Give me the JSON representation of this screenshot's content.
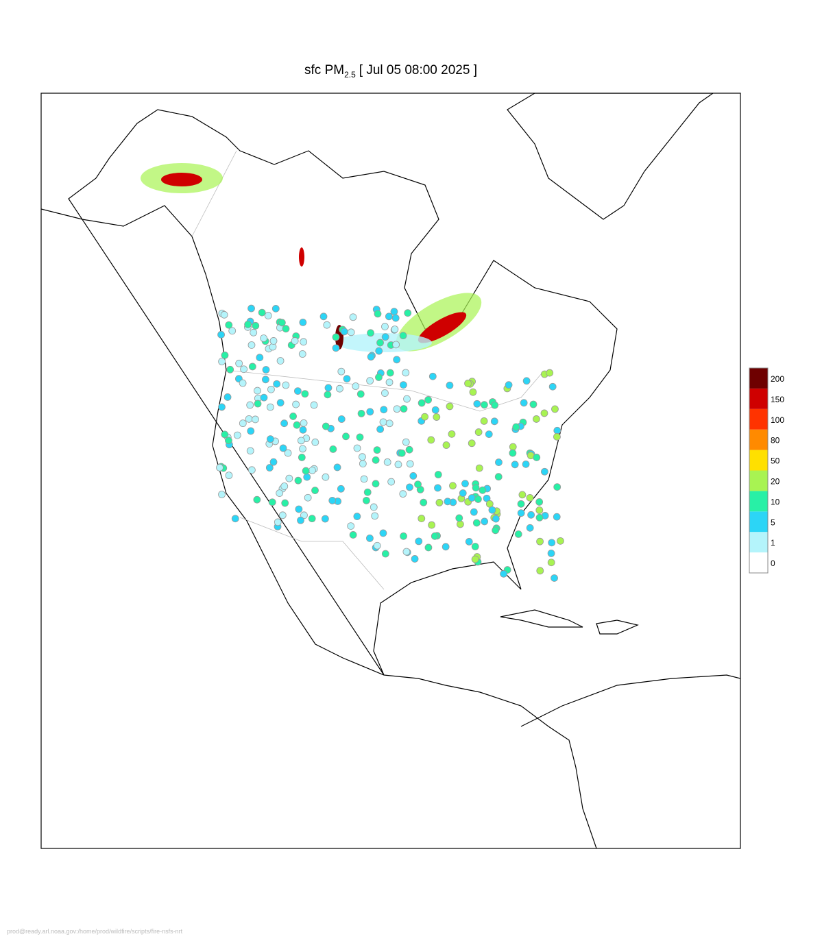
{
  "header": {
    "title_prefix": "sfc PM",
    "title_subscript": "2.5",
    "title_suffix": "[ Jul 05 08:00 2025 ]"
  },
  "legend": {
    "levels": [
      {
        "label": "0",
        "color": "#ffffff"
      },
      {
        "label": "1",
        "color": "#b4f4fb"
      },
      {
        "label": "5",
        "color": "#2cd5f6"
      },
      {
        "label": "10",
        "color": "#28f0a6"
      },
      {
        "label": "20",
        "color": "#a8f352"
      },
      {
        "label": "50",
        "color": "#ffe000"
      },
      {
        "label": "80",
        "color": "#ff8a00"
      },
      {
        "label": "100",
        "color": "#ff3300"
      },
      {
        "label": "150",
        "color": "#cf0000"
      },
      {
        "label": "200",
        "color": "#6e0000"
      }
    ]
  },
  "footer": {
    "text": "prod@ready.arl.noaa.gov:/home/prod/wildfire/scripts/fire-nsfs-nrt"
  }
}
